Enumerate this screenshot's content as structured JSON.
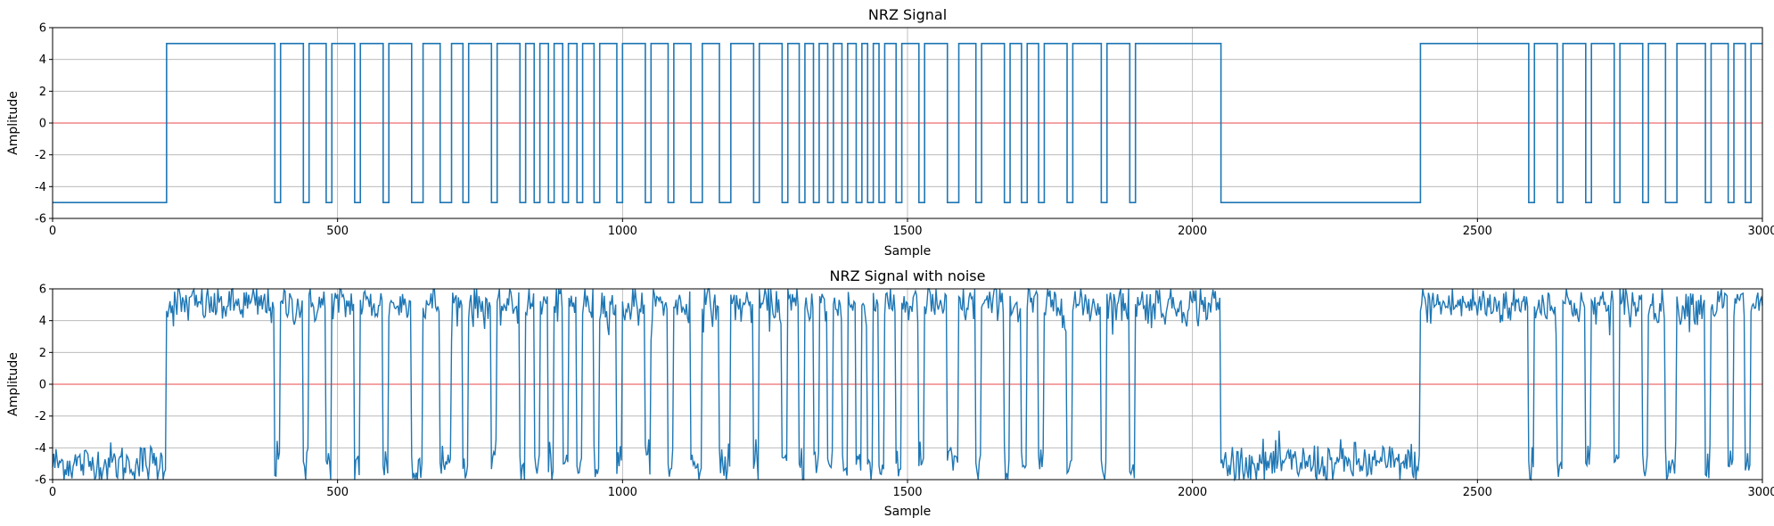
{
  "chart_data": [
    {
      "type": "line",
      "title": "NRZ Signal",
      "xlabel": "Sample",
      "ylabel": "Amplitude",
      "xlim": [
        0,
        3000
      ],
      "ylim": [
        -6,
        6
      ],
      "xticks": [
        0,
        500,
        1000,
        1500,
        2000,
        2500,
        3000
      ],
      "yticks": [
        -6,
        -4,
        -2,
        0,
        2,
        4,
        6
      ],
      "grid": true,
      "reference_line": {
        "y": 0,
        "color": "#e8474a"
      },
      "series_color": "#1f77b4",
      "noise": false,
      "levels": [
        -5,
        5
      ],
      "transitions": [
        {
          "x": 0,
          "y": -5
        },
        {
          "x": 200,
          "y": 5
        },
        {
          "x": 390,
          "y": -5
        },
        {
          "x": 400,
          "y": 5
        },
        {
          "x": 440,
          "y": -5
        },
        {
          "x": 450,
          "y": 5
        },
        {
          "x": 480,
          "y": -5
        },
        {
          "x": 490,
          "y": 5
        },
        {
          "x": 530,
          "y": -5
        },
        {
          "x": 540,
          "y": 5
        },
        {
          "x": 580,
          "y": -5
        },
        {
          "x": 590,
          "y": 5
        },
        {
          "x": 630,
          "y": -5
        },
        {
          "x": 650,
          "y": 5
        },
        {
          "x": 680,
          "y": -5
        },
        {
          "x": 700,
          "y": 5
        },
        {
          "x": 720,
          "y": -5
        },
        {
          "x": 730,
          "y": 5
        },
        {
          "x": 770,
          "y": -5
        },
        {
          "x": 780,
          "y": 5
        },
        {
          "x": 820,
          "y": -5
        },
        {
          "x": 830,
          "y": 5
        },
        {
          "x": 845,
          "y": -5
        },
        {
          "x": 855,
          "y": 5
        },
        {
          "x": 870,
          "y": -5
        },
        {
          "x": 880,
          "y": 5
        },
        {
          "x": 895,
          "y": -5
        },
        {
          "x": 905,
          "y": 5
        },
        {
          "x": 920,
          "y": -5
        },
        {
          "x": 930,
          "y": 5
        },
        {
          "x": 950,
          "y": -5
        },
        {
          "x": 960,
          "y": 5
        },
        {
          "x": 990,
          "y": -5
        },
        {
          "x": 1000,
          "y": 5
        },
        {
          "x": 1040,
          "y": -5
        },
        {
          "x": 1050,
          "y": 5
        },
        {
          "x": 1080,
          "y": -5
        },
        {
          "x": 1090,
          "y": 5
        },
        {
          "x": 1120,
          "y": -5
        },
        {
          "x": 1140,
          "y": 5
        },
        {
          "x": 1170,
          "y": -5
        },
        {
          "x": 1190,
          "y": 5
        },
        {
          "x": 1230,
          "y": -5
        },
        {
          "x": 1240,
          "y": 5
        },
        {
          "x": 1280,
          "y": -5
        },
        {
          "x": 1290,
          "y": 5
        },
        {
          "x": 1310,
          "y": -5
        },
        {
          "x": 1320,
          "y": 5
        },
        {
          "x": 1335,
          "y": -5
        },
        {
          "x": 1345,
          "y": 5
        },
        {
          "x": 1360,
          "y": -5
        },
        {
          "x": 1370,
          "y": 5
        },
        {
          "x": 1385,
          "y": -5
        },
        {
          "x": 1395,
          "y": 5
        },
        {
          "x": 1410,
          "y": -5
        },
        {
          "x": 1420,
          "y": 5
        },
        {
          "x": 1430,
          "y": -5
        },
        {
          "x": 1440,
          "y": 5
        },
        {
          "x": 1450,
          "y": -5
        },
        {
          "x": 1460,
          "y": 5
        },
        {
          "x": 1480,
          "y": -5
        },
        {
          "x": 1490,
          "y": 5
        },
        {
          "x": 1520,
          "y": -5
        },
        {
          "x": 1530,
          "y": 5
        },
        {
          "x": 1570,
          "y": -5
        },
        {
          "x": 1590,
          "y": 5
        },
        {
          "x": 1620,
          "y": -5
        },
        {
          "x": 1630,
          "y": 5
        },
        {
          "x": 1670,
          "y": -5
        },
        {
          "x": 1680,
          "y": 5
        },
        {
          "x": 1700,
          "y": -5
        },
        {
          "x": 1710,
          "y": 5
        },
        {
          "x": 1730,
          "y": -5
        },
        {
          "x": 1740,
          "y": 5
        },
        {
          "x": 1780,
          "y": -5
        },
        {
          "x": 1790,
          "y": 5
        },
        {
          "x": 1840,
          "y": -5
        },
        {
          "x": 1850,
          "y": 5
        },
        {
          "x": 1890,
          "y": -5
        },
        {
          "x": 1900,
          "y": 5
        },
        {
          "x": 2050,
          "y": -5
        },
        {
          "x": 2400,
          "y": 5
        },
        {
          "x": 2590,
          "y": -5
        },
        {
          "x": 2600,
          "y": 5
        },
        {
          "x": 2640,
          "y": -5
        },
        {
          "x": 2650,
          "y": 5
        },
        {
          "x": 2690,
          "y": -5
        },
        {
          "x": 2700,
          "y": 5
        },
        {
          "x": 2740,
          "y": -5
        },
        {
          "x": 2750,
          "y": 5
        },
        {
          "x": 2790,
          "y": -5
        },
        {
          "x": 2800,
          "y": 5
        },
        {
          "x": 2830,
          "y": -5
        },
        {
          "x": 2850,
          "y": 5
        },
        {
          "x": 2900,
          "y": -5
        },
        {
          "x": 2910,
          "y": 5
        },
        {
          "x": 2940,
          "y": -5
        },
        {
          "x": 2950,
          "y": 5
        },
        {
          "x": 2970,
          "y": -5
        },
        {
          "x": 2980,
          "y": 5
        }
      ]
    },
    {
      "type": "line",
      "title": "NRZ Signal with noise",
      "xlabel": "Sample",
      "ylabel": "Amplitude",
      "xlim": [
        0,
        3000
      ],
      "ylim": [
        -6,
        6
      ],
      "xticks": [
        0,
        500,
        1000,
        1500,
        2000,
        2500,
        3000
      ],
      "yticks": [
        -6,
        -4,
        -2,
        0,
        2,
        4,
        6
      ],
      "grid": true,
      "reference_line": {
        "y": 0,
        "color": "#e8474a"
      },
      "series_color": "#1f77b4",
      "noise": true,
      "noise_amplitude": 1.2,
      "levels": [
        -5,
        5
      ],
      "transitions_same_as": 0
    }
  ]
}
